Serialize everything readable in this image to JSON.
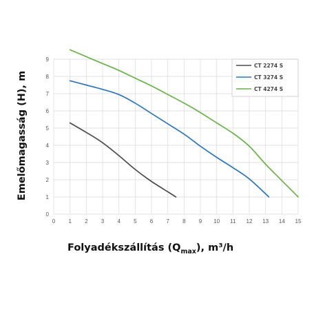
{
  "chart_data": {
    "type": "line",
    "title": "",
    "xlabel_main": "Folyadékszállítás (Q",
    "xlabel_sub": "max",
    "xlabel_tail": "), m³/h",
    "ylabel": "Emelőmagasság (H), m",
    "xlim": [
      0,
      15
    ],
    "ylim": [
      0,
      9
    ],
    "xticks": [
      0,
      1,
      2,
      3,
      4,
      5,
      6,
      7,
      8,
      9,
      10,
      11,
      12,
      13,
      14,
      15
    ],
    "yticks": [
      0,
      1,
      2,
      3,
      4,
      5,
      6,
      7,
      8,
      9
    ],
    "grid": true,
    "legend_position": "top-right",
    "series": [
      {
        "name": "CT 2274 S",
        "color": "#4a4a4a",
        "x": [
          1,
          2,
          3,
          4,
          5,
          6,
          7,
          7.5
        ],
        "y": [
          5.3,
          4.75,
          4.15,
          3.4,
          2.6,
          1.9,
          1.3,
          1.0
        ]
      },
      {
        "name": "CT 3274 S",
        "color": "#2e74b5",
        "x": [
          1,
          2,
          3,
          4,
          5,
          6,
          7,
          8,
          9,
          10,
          11,
          12,
          13.2
        ],
        "y": [
          7.75,
          7.5,
          7.25,
          6.95,
          6.45,
          5.85,
          5.25,
          4.65,
          3.95,
          3.3,
          2.7,
          2.05,
          1.0
        ]
      },
      {
        "name": "CT 4274 S",
        "color": "#6ab04c",
        "x": [
          1,
          2,
          3,
          4,
          5,
          6,
          7,
          8,
          9,
          10,
          11,
          12,
          13,
          14,
          15
        ],
        "y": [
          9.55,
          9.15,
          8.75,
          8.35,
          7.9,
          7.45,
          6.95,
          6.45,
          5.9,
          5.3,
          4.7,
          3.95,
          2.9,
          1.95,
          1.0
        ]
      }
    ]
  }
}
